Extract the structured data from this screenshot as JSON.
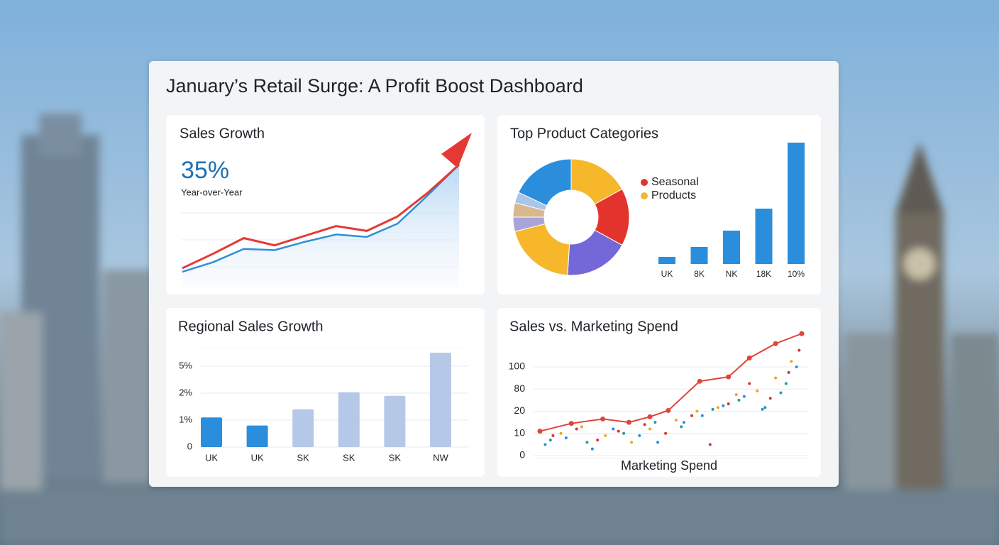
{
  "header": {
    "title": "January’s Retail Surge: A Profit Boost Dashboard"
  },
  "chart_data": [
    {
      "type": "line",
      "title": "Sales Growth",
      "kpi": {
        "value": 35,
        "value_label": "35%",
        "caption": "Year-over-Year"
      },
      "categories": [
        null,
        null,
        null,
        null,
        null,
        null,
        null,
        null,
        null,
        null
      ],
      "series": [
        {
          "color": "#e53935",
          "values": [
            13,
            25,
            38,
            32,
            40,
            48,
            44,
            56,
            76,
            99
          ]
        },
        {
          "color": "#2f8fd8",
          "values": [
            10,
            18,
            29,
            28,
            35,
            41,
            39,
            50,
            74,
            99
          ]
        }
      ]
    },
    {
      "type": "pie",
      "title": "Top Product Categories",
      "values": [
        17,
        16,
        18,
        20,
        4,
        4,
        3,
        18
      ],
      "colors": [
        "#f6b82a",
        "#e2342d",
        "#7468d8",
        "#f6b82a",
        "#a9a4d8",
        "#d7b98f",
        "#a9c6e8",
        "#2a8edc"
      ],
      "legend": [
        {
          "label": "Seasonal",
          "color": "#e2342d"
        },
        {
          "label": "Products",
          "color": "#f6b82a"
        }
      ]
    },
    {
      "type": "bar",
      "categories": [
        "UK",
        "8K",
        "NK",
        "18K",
        "10%"
      ],
      "values": [
        10,
        24,
        47,
        78,
        171
      ],
      "color": "#2a8edc"
    },
    {
      "type": "bar",
      "title": "Regional Sales Growth",
      "categories": [
        "UK",
        "UK",
        "SK",
        "SK",
        "SK",
        "NW"
      ],
      "values": [
        1.1,
        0.8,
        1.4,
        2.1,
        1.9,
        6.5
      ],
      "colors": [
        "#2a8edc",
        "#2a8edc",
        "#b6c8e8",
        "#b6c8e8",
        "#b6c8e8",
        "#b6c8e8"
      ],
      "ylim": [
        0,
        7
      ],
      "yticks": [
        {
          "value": 0,
          "label": "0"
        },
        {
          "value": 1,
          "label": "1%"
        },
        {
          "value": 2,
          "label": "2%"
        },
        {
          "value": 5,
          "label": "5%"
        }
      ],
      "grid": true
    },
    {
      "type": "scatter",
      "title": "Sales vs. Marketing Spend",
      "xlabel": "Marketing Spend",
      "ylim": [
        0,
        130
      ],
      "yticks": [
        0,
        10,
        20,
        80,
        100
      ],
      "grid": true,
      "trend": {
        "color": "#e0443a",
        "x": [
          0,
          12,
          24,
          34,
          42,
          49,
          61,
          72,
          80,
          90,
          100
        ],
        "y": [
          11,
          14.5,
          16.5,
          15,
          17.5,
          22,
          87,
          91,
          108,
          121,
          130
        ]
      },
      "series": [
        {
          "color": "#2a8edc",
          "x": [
            2,
            10,
            20,
            28,
            38,
            45,
            55,
            62,
            70,
            78,
            85,
            92,
            98
          ],
          "y": [
            5,
            8,
            3,
            12,
            9,
            6,
            15,
            18,
            35,
            60,
            25,
            70,
            100
          ]
        },
        {
          "color": "#d8352d",
          "x": [
            5,
            14,
            22,
            30,
            40,
            48,
            58,
            65,
            72,
            80,
            88,
            95,
            99
          ],
          "y": [
            9,
            12,
            7,
            11,
            14,
            10,
            18,
            5,
            40,
            85,
            55,
            95,
            115
          ]
        },
        {
          "color": "#f0a526",
          "x": [
            8,
            16,
            25,
            35,
            42,
            52,
            60,
            68,
            75,
            83,
            90,
            96
          ],
          "y": [
            10,
            13,
            9,
            6,
            12,
            16,
            20,
            30,
            65,
            75,
            90,
            105
          ]
        },
        {
          "color": "#1f9e9a",
          "x": [
            4,
            18,
            32,
            44,
            54,
            66,
            76,
            86,
            94
          ],
          "y": [
            7,
            6,
            10,
            15,
            13,
            25,
            50,
            30,
            85
          ]
        }
      ]
    }
  ]
}
